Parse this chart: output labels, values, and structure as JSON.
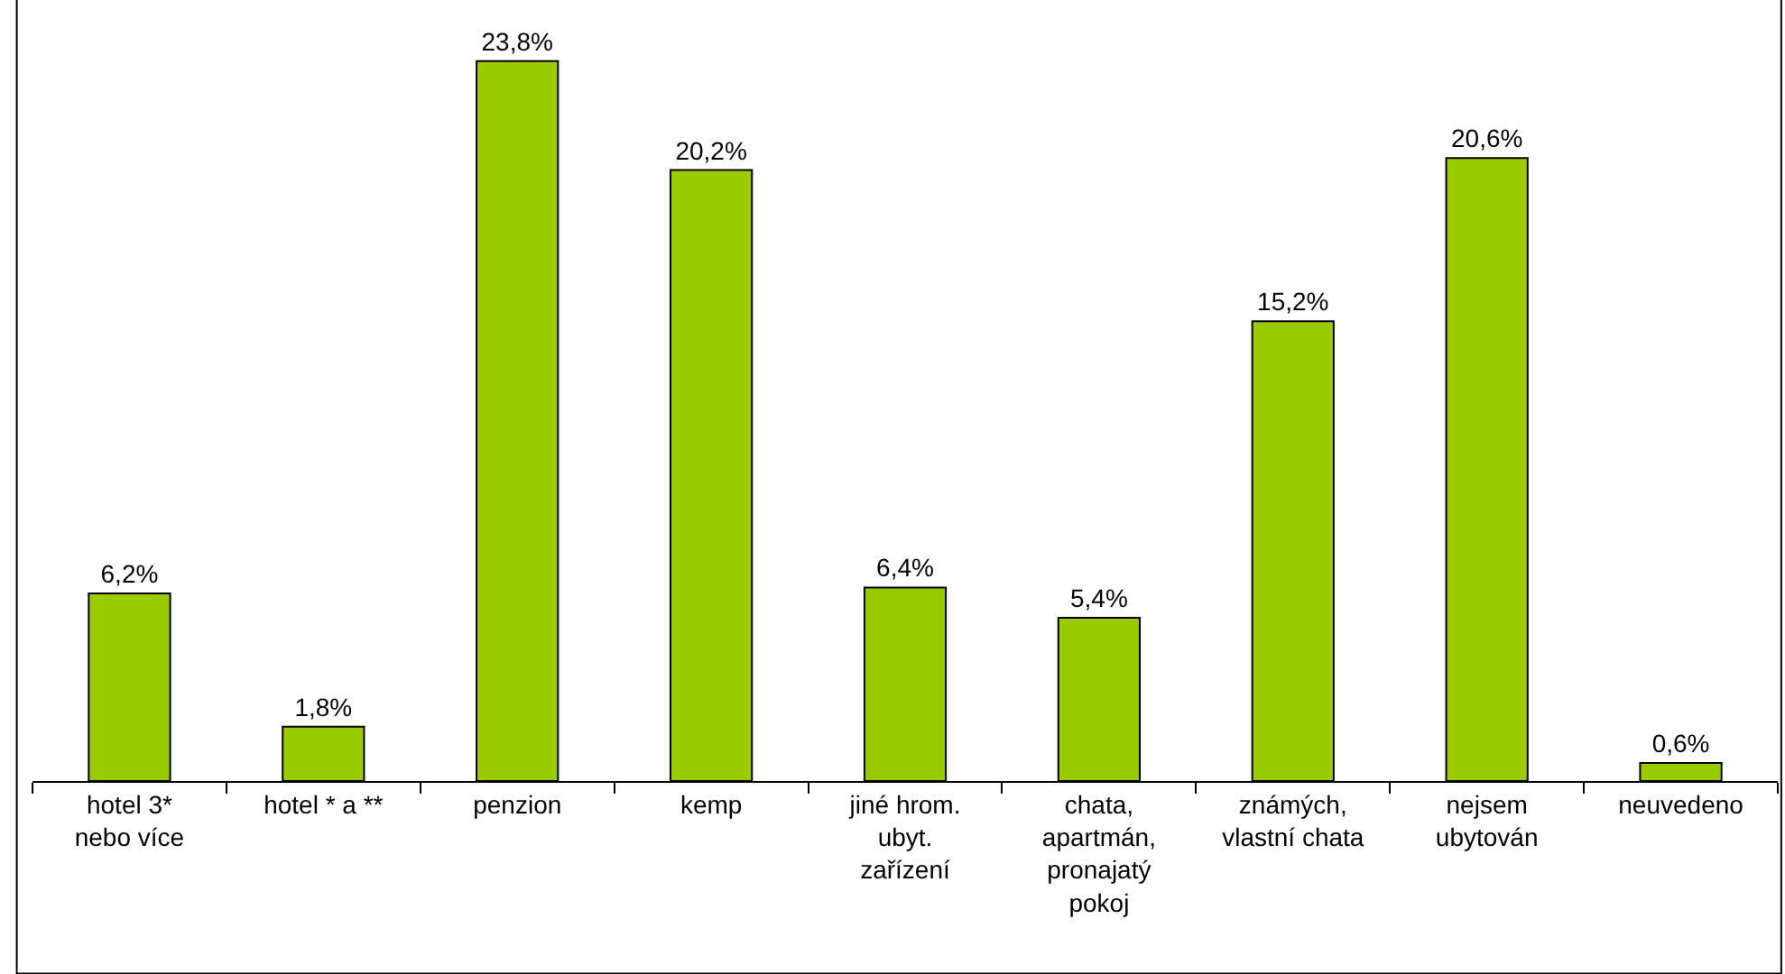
{
  "chart_data": {
    "type": "bar",
    "categories": [
      "hotel 3*\nnebo více",
      "hotel * a **",
      "penzion",
      "kemp",
      "jiné hrom.\nubyt.\nzařízení",
      "chata,\napartmán,\npronajatý\npokoj",
      "známých,\nvlastní chata",
      "nejsem\nubytován",
      "neuvedeno"
    ],
    "values": [
      6.2,
      1.8,
      23.8,
      20.2,
      6.4,
      5.4,
      15.2,
      20.6,
      0.6
    ],
    "value_labels": [
      "6,2%",
      "1,8%",
      "23,8%",
      "20,2%",
      "6,4%",
      "5,4%",
      "15,2%",
      "20,6%",
      "0,6%"
    ],
    "color": "#99cc00",
    "grid": false,
    "legend": false
  }
}
